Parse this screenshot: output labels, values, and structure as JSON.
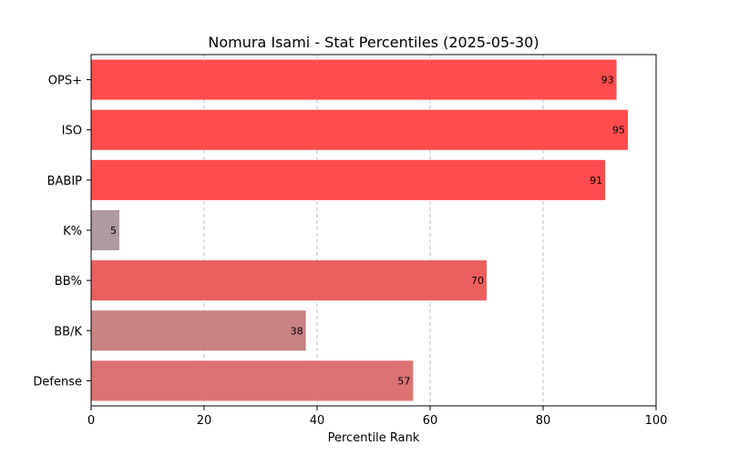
{
  "chart_data": {
    "type": "bar",
    "orientation": "horizontal",
    "title": "Nomura Isami - Stat Percentiles (2025-05-30)",
    "xlabel": "Percentile Rank",
    "ylabel": "",
    "xlim": [
      0,
      100
    ],
    "xticks": [
      0,
      20,
      40,
      60,
      80,
      100
    ],
    "grid": "x-dashed",
    "categories": [
      "OPS+",
      "ISO",
      "BABIP",
      "K%",
      "BB%",
      "BB/K",
      "Defense"
    ],
    "values": [
      93,
      95,
      91,
      5,
      70,
      38,
      57
    ],
    "colors": [
      "#ff4d4d",
      "#ff4d4d",
      "#ff4d4d",
      "#b09a9f",
      "#ec5f5f",
      "#c88383",
      "#dc7372"
    ]
  }
}
